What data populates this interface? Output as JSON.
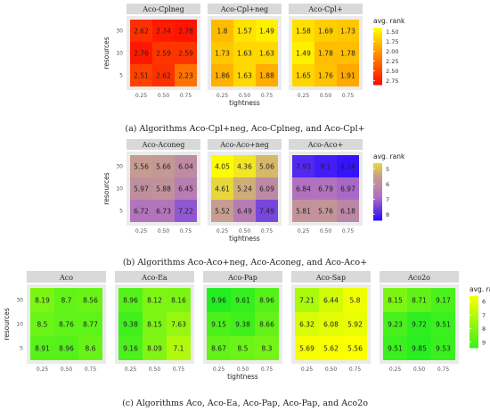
{
  "chart_data": [
    {
      "type": "heatmap",
      "caption": "(a) Algorithms Aco-Cpl+neg, Aco-Cplneg, and Aco-Cpl+",
      "xlabel": "tightness",
      "ylabel": "resources",
      "x_ticks": [
        "0.25",
        "0.50",
        "0.75"
      ],
      "y_ticks": [
        "30",
        "10",
        "5"
      ],
      "legend_title": "avg. rank",
      "legend_ticks": [
        1.5,
        1.75,
        2.0,
        2.25,
        2.5,
        2.75
      ],
      "color_range": [
        1.4,
        2.9
      ],
      "colors": [
        "#ffff00",
        "#ff0000"
      ],
      "panels": [
        {
          "title": "Aco-Cplneg",
          "values": [
            [
              2.62,
              2.74,
              2.78
            ],
            [
              2.76,
              2.59,
              2.59
            ],
            [
              2.51,
              2.62,
              2.23
            ]
          ]
        },
        {
          "title": "Aco-Cpl+neg",
          "values": [
            [
              1.8,
              1.57,
              1.49
            ],
            [
              1.73,
              1.63,
              1.63
            ],
            [
              1.86,
              1.63,
              1.88
            ]
          ]
        },
        {
          "title": "Aco-Cpl+",
          "values": [
            [
              1.58,
              1.69,
              1.73
            ],
            [
              1.49,
              1.78,
              1.78
            ],
            [
              1.65,
              1.76,
              1.91
            ]
          ]
        }
      ]
    },
    {
      "type": "heatmap",
      "caption": "(b) Algorithms Aco-Aco+neg, Aco-Aconeg, and Aco-Aco+",
      "xlabel": "tightness",
      "ylabel": "resources",
      "x_ticks": [
        "0.25",
        "0.50",
        "0.75"
      ],
      "y_ticks": [
        "30",
        "10",
        "5"
      ],
      "legend_title": "avg. rank",
      "legend_ticks": [
        5,
        6,
        7,
        8
      ],
      "color_range": [
        4,
        8.3
      ],
      "colors": [
        "#ffff00",
        "#c8a08c",
        "#b070c0",
        "#3010ff"
      ],
      "panels": [
        {
          "title": "Aco-Aconeg",
          "values": [
            [
              5.56,
              5.66,
              6.04
            ],
            [
              5.97,
              5.88,
              6.45
            ],
            [
              6.72,
              6.73,
              7.22
            ]
          ]
        },
        {
          "title": "Aco-Aco+neg",
          "values": [
            [
              4.05,
              4.36,
              5.06
            ],
            [
              4.61,
              5.24,
              6.09
            ],
            [
              5.52,
              6.49,
              7.49
            ]
          ]
        },
        {
          "title": "Aco-Aco+",
          "values": [
            [
              7.93,
              8.1,
              8.24
            ],
            [
              6.84,
              6.79,
              6.97
            ],
            [
              5.81,
              5.76,
              6.18
            ]
          ]
        }
      ]
    },
    {
      "type": "heatmap",
      "caption": "(c) Algorithms Aco, Aco-Ea, Aco-Pap, Aco-Pap, and Aco2o",
      "xlabel": "tightness",
      "ylabel": "resources",
      "x_ticks": [
        "0.25",
        "0.50",
        "0.75"
      ],
      "y_ticks": [
        "30",
        "10",
        "5"
      ],
      "legend_title": "avg. rank",
      "legend_ticks": [
        6,
        7,
        8,
        9
      ],
      "color_range": [
        5.5,
        10
      ],
      "colors": [
        "#ffff00",
        "#22ee22"
      ],
      "panels": [
        {
          "title": "Aco",
          "values": [
            [
              8.19,
              8.7,
              8.56
            ],
            [
              8.5,
              8.76,
              8.77
            ],
            [
              8.91,
              8.96,
              8.6
            ]
          ]
        },
        {
          "title": "Aco-Ea",
          "values": [
            [
              8.96,
              8.12,
              8.16
            ],
            [
              9.38,
              8.15,
              7.63
            ],
            [
              9.16,
              8.09,
              7.1
            ]
          ]
        },
        {
          "title": "Aco-Pap",
          "values": [
            [
              9.96,
              9.61,
              8.96
            ],
            [
              9.15,
              9.38,
              8.66
            ],
            [
              8.67,
              8.5,
              8.3
            ]
          ]
        },
        {
          "title": "Aco-Sap",
          "values": [
            [
              7.21,
              6.44,
              5.8
            ],
            [
              6.32,
              6.08,
              5.92
            ],
            [
              5.69,
              5.62,
              5.56
            ]
          ]
        },
        {
          "title": "Aco2o",
          "values": [
            [
              8.15,
              8.71,
              9.17
            ],
            [
              9.23,
              9.72,
              9.51
            ],
            [
              9.51,
              9.85,
              9.53
            ]
          ]
        }
      ]
    }
  ]
}
